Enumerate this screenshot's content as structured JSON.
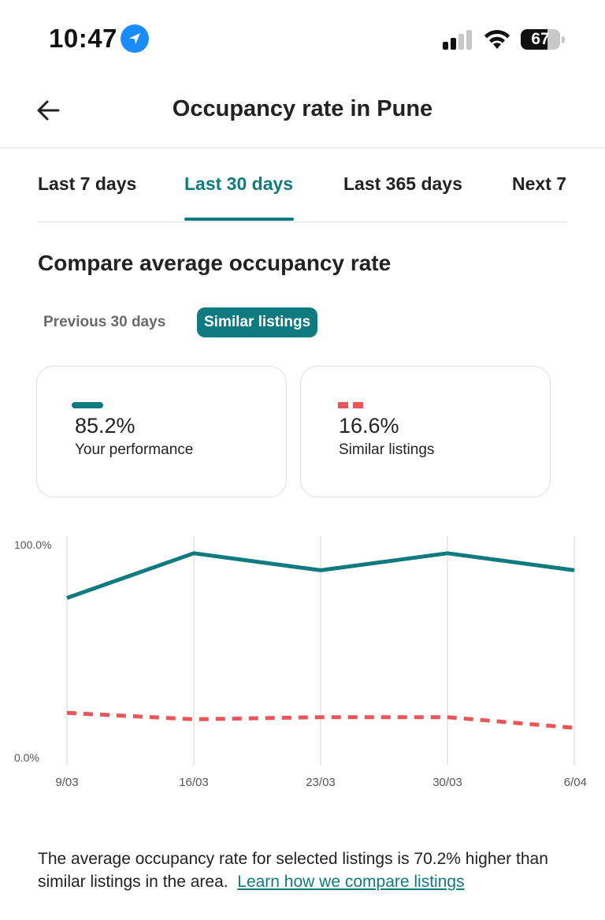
{
  "status_bar": {
    "time": "10:47",
    "battery": "67",
    "battery_level": 0.67,
    "icons": [
      "location-arrow-icon",
      "cellular-signal-icon",
      "wifi-icon",
      "battery-icon"
    ]
  },
  "header": {
    "title": "Occupancy rate in Pune",
    "back_icon": "arrow-left-icon"
  },
  "tabs": [
    {
      "label": "Last 7 days",
      "active": false
    },
    {
      "label": "Last 30 days",
      "active": true
    },
    {
      "label": "Last 365 days",
      "active": false
    },
    {
      "label": "Next 7",
      "active": false
    }
  ],
  "section": {
    "title": "Compare average occupancy rate",
    "toggles": [
      {
        "label": "Previous 30 days",
        "active": false
      },
      {
        "label": "Similar listings",
        "active": true
      }
    ]
  },
  "cards": [
    {
      "value": "85.2%",
      "label": "Your performance",
      "legend": "solid",
      "color": "#107b7e"
    },
    {
      "value": "16.6%",
      "label": "Similar listings",
      "legend": "dashed",
      "color": "#e8565a"
    }
  ],
  "chart_data": {
    "type": "line",
    "x": [
      "9/03",
      "16/03",
      "23/03",
      "30/03",
      "6/04"
    ],
    "y_tick_labels": [
      "100.0%",
      "0.0%"
    ],
    "ylim": [
      0,
      100
    ],
    "grid": "vertical",
    "series": [
      {
        "name": "Your performance",
        "style": "solid",
        "color": "#107b7e",
        "values": [
          75,
          96,
          88,
          96,
          88
        ]
      },
      {
        "name": "Similar listings",
        "style": "dashed",
        "color": "#e8565a",
        "values": [
          21,
          18,
          19,
          19,
          14
        ]
      }
    ]
  },
  "summary": {
    "text": "The average occupancy rate for selected listings is 70.2% higher than similar listings in the area.",
    "link": "Learn how we compare listings"
  },
  "colors": {
    "accent": "#107b7e",
    "comparison": "#e8565a"
  }
}
